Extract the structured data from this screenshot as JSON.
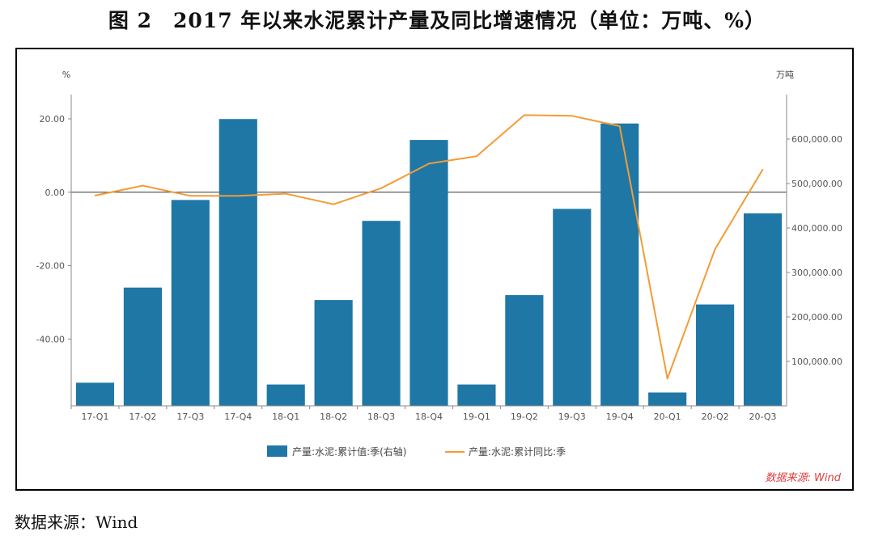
{
  "title": "图 2　2017 年以来水泥累计产量及同比增速情况（单位：万吨、%）",
  "footer_source": "数据来源：Wind",
  "chart_data": {
    "type": "bar+line",
    "categories": [
      "17-Q1",
      "17-Q2",
      "17-Q3",
      "17-Q4",
      "18-Q1",
      "18-Q2",
      "18-Q3",
      "18-Q4",
      "19-Q1",
      "19-Q2",
      "19-Q3",
      "19-Q4",
      "20-Q1",
      "20-Q2",
      "20-Q3"
    ],
    "series": [
      {
        "name": "产量:水泥:累计值:季(右轴)",
        "type": "bar",
        "axis": "right",
        "color": "#1f77a6",
        "values": [
          52000,
          266000,
          463000,
          645000,
          48000,
          238000,
          416000,
          598000,
          48000,
          249000,
          443000,
          635000,
          30000,
          228000,
          433000
        ]
      },
      {
        "name": "产量:水泥:累计同比:季",
        "type": "line",
        "axis": "left",
        "color": "#f39c36",
        "values": [
          -0.9,
          1.8,
          -1.0,
          -1.0,
          -0.4,
          -3.3,
          1.1,
          7.8,
          9.8,
          21.0,
          20.8,
          18.0,
          -50.8,
          -15.5,
          6.2
        ]
      }
    ],
    "left_axis": {
      "unit": "%",
      "ticks": [
        20.0,
        0.0,
        -20.0,
        -40.0
      ],
      "tick_labels": [
        "20.00",
        "0.00",
        "-20.00",
        "-40.00"
      ],
      "range": [
        -58.2,
        26.6
      ]
    },
    "right_axis": {
      "unit": "万吨",
      "ticks": [
        600000,
        500000,
        400000,
        300000,
        200000,
        100000
      ],
      "tick_labels": [
        "600,000.00",
        "500,000.00",
        "400,000.00",
        "300,000.00",
        "200,000.00",
        "100,000.00"
      ],
      "range": [
        0,
        700000
      ]
    },
    "legend_position": "bottom-center",
    "watermark": "数据来源: Wind"
  }
}
